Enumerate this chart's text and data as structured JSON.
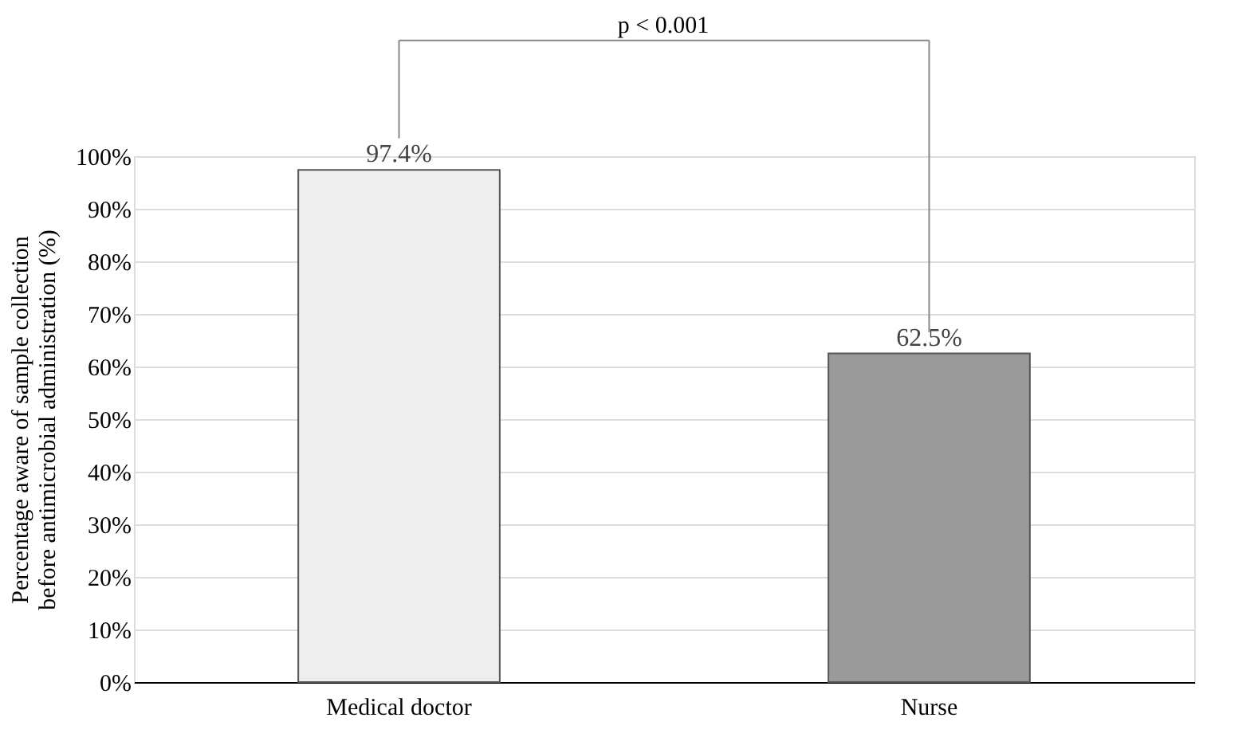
{
  "chart_data": {
    "type": "bar",
    "categories": [
      "Medical doctor",
      "Nurse"
    ],
    "values": [
      97.4,
      62.5
    ],
    "colors": [
      "#eeeeee",
      "#9a9a9a"
    ],
    "value_labels": [
      "97.4%",
      "62.5%"
    ],
    "ylabel": "Percentage aware of sample collection\nbefore antimicrobial administration (%)",
    "ylim": [
      0,
      100
    ],
    "yticks": [
      {
        "value": 0,
        "label": "0%"
      },
      {
        "value": 10,
        "label": "10%"
      },
      {
        "value": 20,
        "label": "20%"
      },
      {
        "value": 30,
        "label": "30%"
      },
      {
        "value": 40,
        "label": "40%"
      },
      {
        "value": 50,
        "label": "50%"
      },
      {
        "value": 60,
        "label": "60%"
      },
      {
        "value": 70,
        "label": "70%"
      },
      {
        "value": 80,
        "label": "80%"
      },
      {
        "value": 90,
        "label": "90%"
      },
      {
        "value": 100,
        "label": "100%"
      }
    ],
    "grid": "y",
    "annotations": [
      "p < 0.001"
    ]
  }
}
